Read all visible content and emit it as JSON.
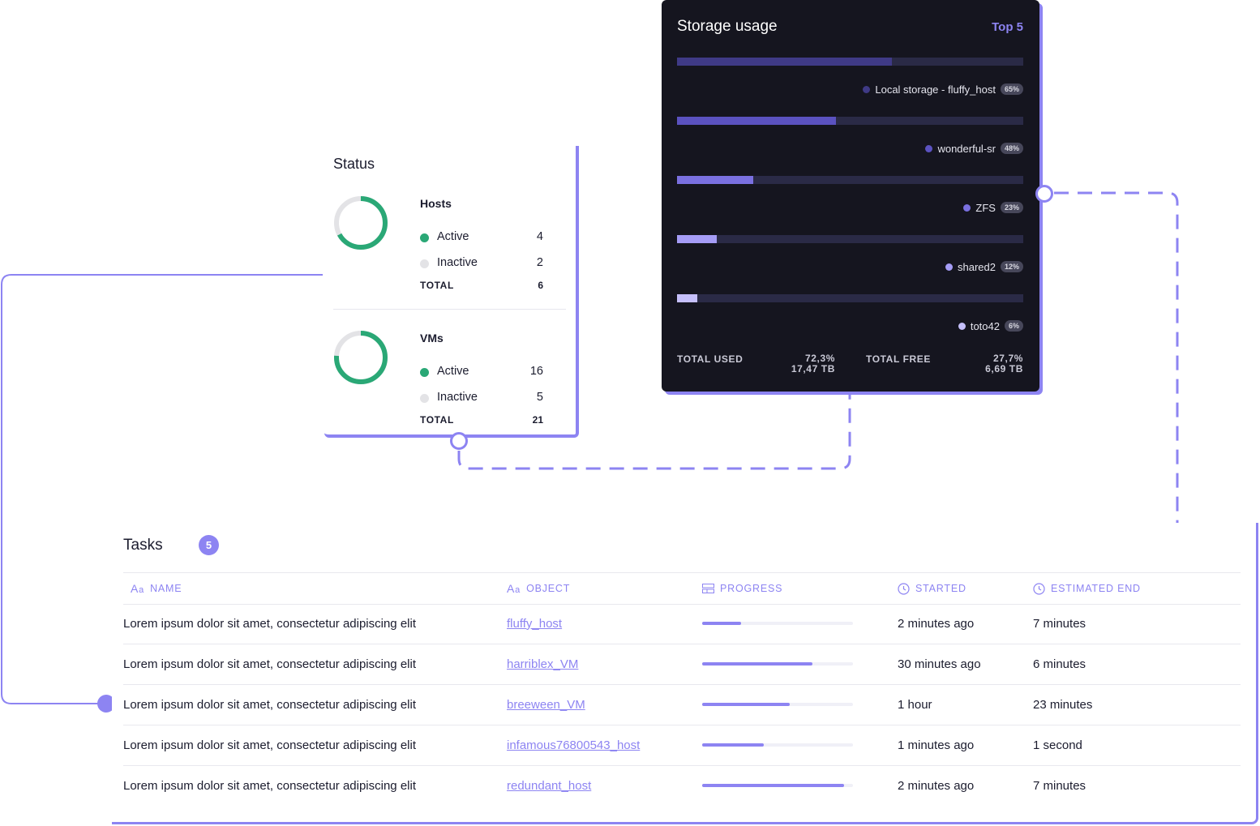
{
  "status": {
    "title": "Status",
    "groups": [
      {
        "title": "Hosts",
        "active_label": "Active",
        "active_count": "4",
        "inactive_label": "Inactive",
        "inactive_count": "2",
        "total_label": "TOTAL",
        "total_count": "6",
        "active_fraction": 0.67
      },
      {
        "title": "VMs",
        "active_label": "Active",
        "active_count": "16",
        "inactive_label": "Inactive",
        "inactive_count": "5",
        "total_label": "TOTAL",
        "total_count": "21",
        "active_fraction": 0.76
      }
    ],
    "colors": {
      "active": "#2aa876",
      "inactive": "#e3e3e6"
    }
  },
  "storage": {
    "title": "Storage usage",
    "top_label": "Top 5",
    "items": [
      {
        "name": "Local storage - fluffy_host",
        "percent_label": "65%",
        "fraction": 0.62,
        "color": "#3f3a86"
      },
      {
        "name": "wonderful-sr",
        "percent_label": "48%",
        "fraction": 0.46,
        "color": "#5b52c0"
      },
      {
        "name": "ZFS",
        "percent_label": "23%",
        "fraction": 0.22,
        "color": "#7a70e0"
      },
      {
        "name": "shared2",
        "percent_label": "12%",
        "fraction": 0.115,
        "color": "#a59cf6"
      },
      {
        "name": "toto42",
        "percent_label": "6%",
        "fraction": 0.058,
        "color": "#c5bffb"
      }
    ],
    "total_used_label": "TOTAL USED",
    "total_used_pct": "72,3%",
    "total_used_size": "17,47 TB",
    "total_free_label": "TOTAL FREE",
    "total_free_pct": "27,7%",
    "total_free_size": "6,69 TB"
  },
  "tasks": {
    "title": "Tasks",
    "count": "5",
    "columns": {
      "name": "NAME",
      "object": "OBJECT",
      "progress": "PROGRESS",
      "started": "STARTED",
      "estimated_end": "ESTIMATED END"
    },
    "column_icons": {
      "name": "text-icon",
      "object": "text-icon",
      "progress": "progress-icon",
      "started": "clock-icon",
      "estimated_end": "clock-icon"
    },
    "rows": [
      {
        "name": "Lorem ipsum dolor sit amet, consectetur adipiscing elit",
        "object": "fluffy_host",
        "progress": 0.26,
        "started": "2 minutes ago",
        "estimated_end": "7 minutes"
      },
      {
        "name": "Lorem ipsum dolor sit amet, consectetur adipiscing elit",
        "object": "harriblex_VM",
        "progress": 0.73,
        "started": "30 minutes ago",
        "estimated_end": "6 minutes"
      },
      {
        "name": "Lorem ipsum dolor sit amet, consectetur adipiscing elit",
        "object": "breeween_VM",
        "progress": 0.58,
        "started": "1 hour",
        "estimated_end": "23 minutes"
      },
      {
        "name": "Lorem ipsum dolor sit amet, consectetur adipiscing elit",
        "object": "infamous76800543_host",
        "progress": 0.41,
        "started": "1 minutes ago",
        "estimated_end": "1 second"
      },
      {
        "name": "Lorem ipsum dolor sit amet, consectetur adipiscing elit",
        "object": "redundant_host",
        "progress": 0.94,
        "started": "2 minutes ago",
        "estimated_end": "7 minutes"
      }
    ]
  },
  "accent_color": "#8d84f2"
}
